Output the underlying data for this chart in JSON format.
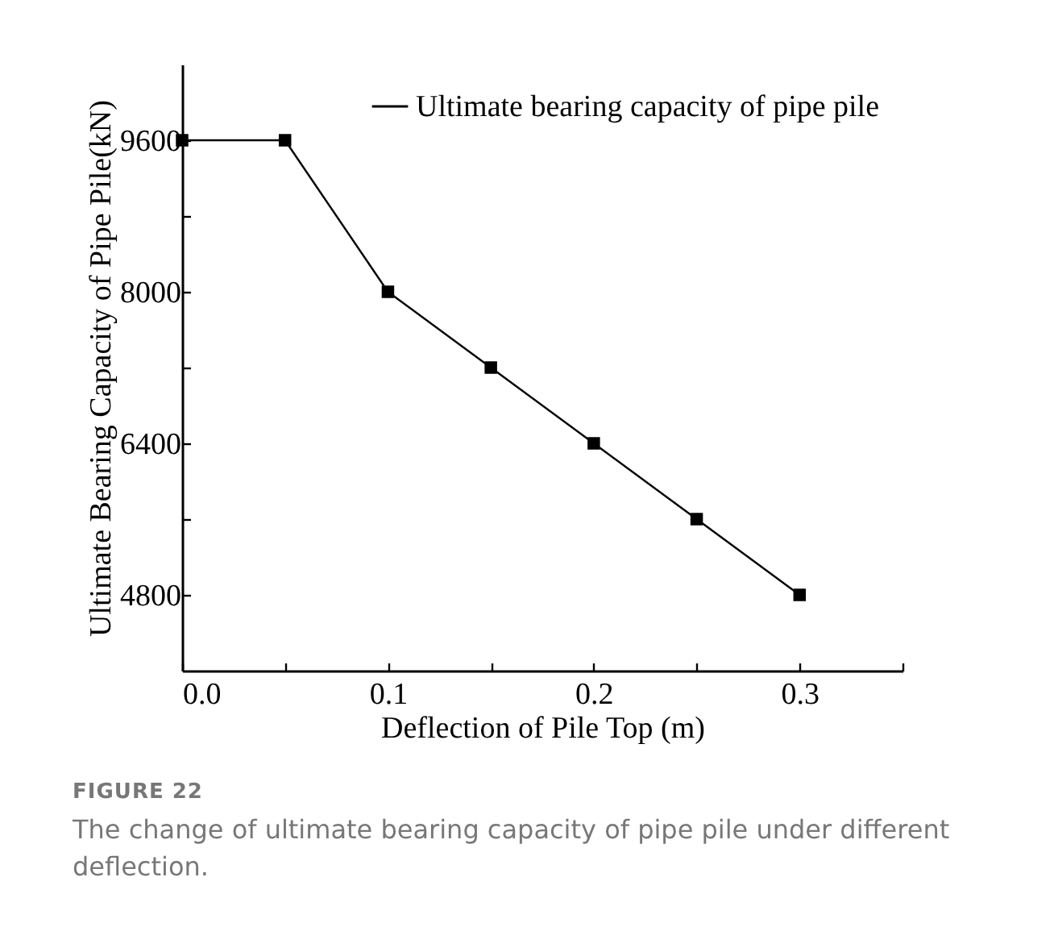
{
  "chart_data": {
    "type": "line",
    "xlabel": "Deflection of Pile Top (m)",
    "ylabel": "Ultimate Bearing Capacity of Pipe Pile(kN)",
    "x": [
      0,
      0.05,
      0.1,
      0.15,
      0.2,
      0.25,
      0.3
    ],
    "series": [
      {
        "name": "Ultimate bearing capacity of pipe pile",
        "color": "#000000",
        "values": [
          9600,
          9600,
          8000,
          7200,
          6400,
          5600,
          4800
        ]
      }
    ],
    "xlim": [
      0,
      0.35
    ],
    "xticks": [
      {
        "value": 0,
        "label": "0.0"
      },
      {
        "value": 0.05,
        "label": null
      },
      0.1,
      {
        "value": 0.15,
        "label": null
      },
      0.2,
      {
        "value": 0.25,
        "label": null
      },
      0.3,
      {
        "value": 0.35,
        "label": null
      }
    ],
    "ylim": [
      4000,
      10400
    ],
    "yticks": [
      4800,
      {
        "value": 5600,
        "label": null
      },
      6400,
      {
        "value": 7200,
        "label": null
      },
      8000,
      {
        "value": 8800,
        "label": null
      },
      9600
    ],
    "marker": "square",
    "line_style": "solid",
    "legend": "top right",
    "grid": false,
    "annotations": [
      "FIGURE 22",
      "The change of ultimate bearing capacity of pipe pile under different deflection."
    ]
  }
}
